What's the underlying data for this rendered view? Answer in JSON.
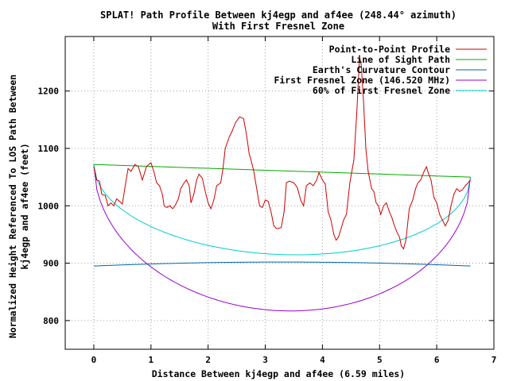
{
  "chart_data": {
    "type": "line",
    "title_line1": "SPLAT! Path Profile Between kj4egp and af4ee (248.44° azimuth)",
    "title_line2": "With First Fresnel Zone",
    "xlabel": "Distance Between kj4egp and af4ee (6.59 miles)",
    "ylabel_line1": "Normalized Height Referenced To LOS Path Between",
    "ylabel_line2": "kj4egp and af4ee (feet)",
    "xlim": [
      -0.5,
      7
    ],
    "ylim": [
      750,
      1295
    ],
    "x_ticks": [
      0,
      1,
      2,
      3,
      4,
      5,
      6,
      7
    ],
    "y_ticks": [
      800,
      900,
      1000,
      1100,
      1200
    ],
    "grid": true,
    "legend_position": "top-right",
    "series": [
      {
        "name": "Point-to-Point Profile",
        "color": "#cc0000",
        "points": [
          [
            0,
            1068
          ],
          [
            0.05,
            1045
          ],
          [
            0.1,
            1043
          ],
          [
            0.14,
            1020
          ],
          [
            0.2,
            1018
          ],
          [
            0.25,
            1000
          ],
          [
            0.3,
            1005
          ],
          [
            0.35,
            1000
          ],
          [
            0.4,
            1012
          ],
          [
            0.45,
            1008
          ],
          [
            0.5,
            1003
          ],
          [
            0.55,
            1035
          ],
          [
            0.6,
            1065
          ],
          [
            0.65,
            1060
          ],
          [
            0.72,
            1072
          ],
          [
            0.78,
            1068
          ],
          [
            0.85,
            1045
          ],
          [
            0.92,
            1068
          ],
          [
            1.0,
            1075
          ],
          [
            1.05,
            1060
          ],
          [
            1.1,
            1040
          ],
          [
            1.15,
            1035
          ],
          [
            1.2,
            1020
          ],
          [
            1.23,
            1000
          ],
          [
            1.28,
            997
          ],
          [
            1.33,
            1000
          ],
          [
            1.38,
            995
          ],
          [
            1.42,
            1000
          ],
          [
            1.48,
            1012
          ],
          [
            1.52,
            1030
          ],
          [
            1.58,
            1040
          ],
          [
            1.62,
            1045
          ],
          [
            1.67,
            1035
          ],
          [
            1.7,
            1005
          ],
          [
            1.75,
            1020
          ],
          [
            1.8,
            1045
          ],
          [
            1.84,
            1055
          ],
          [
            1.9,
            1048
          ],
          [
            1.95,
            1025
          ],
          [
            2.0,
            1005
          ],
          [
            2.05,
            995
          ],
          [
            2.1,
            1010
          ],
          [
            2.15,
            1035
          ],
          [
            2.22,
            1040
          ],
          [
            2.26,
            1065
          ],
          [
            2.3,
            1100
          ],
          [
            2.37,
            1120
          ],
          [
            2.42,
            1130
          ],
          [
            2.48,
            1145
          ],
          [
            2.55,
            1155
          ],
          [
            2.62,
            1152
          ],
          [
            2.67,
            1125
          ],
          [
            2.72,
            1090
          ],
          [
            2.75,
            1080
          ],
          [
            2.8,
            1060
          ],
          [
            2.85,
            1030
          ],
          [
            2.9,
            1000
          ],
          [
            2.95,
            997
          ],
          [
            3.0,
            1010
          ],
          [
            3.05,
            1008
          ],
          [
            3.1,
            990
          ],
          [
            3.15,
            965
          ],
          [
            3.2,
            960
          ],
          [
            3.28,
            962
          ],
          [
            3.33,
            990
          ],
          [
            3.37,
            1040
          ],
          [
            3.42,
            1043
          ],
          [
            3.5,
            1040
          ],
          [
            3.56,
            1032
          ],
          [
            3.62,
            1010
          ],
          [
            3.67,
            1000
          ],
          [
            3.72,
            1035
          ],
          [
            3.78,
            1040
          ],
          [
            3.84,
            1035
          ],
          [
            3.9,
            1045
          ],
          [
            3.94,
            1058
          ],
          [
            4.0,
            1045
          ],
          [
            4.05,
            1038
          ],
          [
            4.1,
            990
          ],
          [
            4.15,
            975
          ],
          [
            4.2,
            950
          ],
          [
            4.24,
            940
          ],
          [
            4.28,
            945
          ],
          [
            4.32,
            958
          ],
          [
            4.37,
            975
          ],
          [
            4.42,
            985
          ],
          [
            4.48,
            1040
          ],
          [
            4.55,
            1080
          ],
          [
            4.6,
            1160
          ],
          [
            4.62,
            1200
          ],
          [
            4.65,
            1260
          ],
          [
            4.68,
            1245
          ],
          [
            4.72,
            1180
          ],
          [
            4.76,
            1100
          ],
          [
            4.8,
            1060
          ],
          [
            4.86,
            1030
          ],
          [
            4.9,
            1025
          ],
          [
            4.94,
            1005
          ],
          [
            4.98,
            1000
          ],
          [
            5.02,
            985
          ],
          [
            5.07,
            1000
          ],
          [
            5.12,
            1005
          ],
          [
            5.17,
            990
          ],
          [
            5.22,
            978
          ],
          [
            5.25,
            968
          ],
          [
            5.3,
            955
          ],
          [
            5.35,
            945
          ],
          [
            5.38,
            930
          ],
          [
            5.42,
            925
          ],
          [
            5.46,
            940
          ],
          [
            5.52,
            995
          ],
          [
            5.58,
            1010
          ],
          [
            5.63,
            1030
          ],
          [
            5.67,
            1040
          ],
          [
            5.72,
            1045
          ],
          [
            5.77,
            1058
          ],
          [
            5.82,
            1068
          ],
          [
            5.86,
            1055
          ],
          [
            5.9,
            1045
          ],
          [
            5.95,
            1015
          ],
          [
            6.0,
            1005
          ],
          [
            6.05,
            985
          ],
          [
            6.1,
            975
          ],
          [
            6.15,
            965
          ],
          [
            6.2,
            975
          ],
          [
            6.25,
            1000
          ],
          [
            6.3,
            1020
          ],
          [
            6.35,
            1030
          ],
          [
            6.4,
            1025
          ],
          [
            6.45,
            1028
          ],
          [
            6.5,
            1035
          ],
          [
            6.55,
            1040
          ],
          [
            6.59,
            1045
          ]
        ]
      },
      {
        "name": "Line of Sight Path",
        "color": "#00aa00",
        "points": [
          [
            0,
            1072
          ],
          [
            6.59,
            1050
          ]
        ]
      },
      {
        "name": "Earth's Curvature Contour",
        "color": "#0066aa",
        "curve": {
          "start": 895,
          "end": 895,
          "peak": 902
        }
      },
      {
        "name": "First Fresnel Zone (146.520 MHz)",
        "color": "#9900cc",
        "curve": {
          "start": 1072,
          "end": 1050,
          "depth": 244,
          "power": 0.5
        }
      },
      {
        "name": "60% of First Fresnel Zone",
        "color": "#00cccc",
        "curve": {
          "start": 1072,
          "end": 1050,
          "depth": 146,
          "power": 0.5
        }
      }
    ],
    "x_span": 6.59
  }
}
